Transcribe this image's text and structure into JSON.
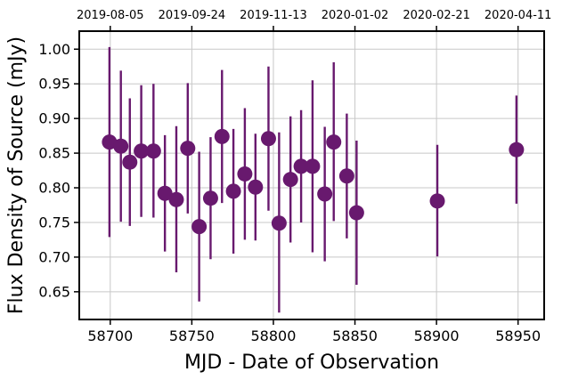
{
  "colors": {
    "marker": "#68196e",
    "grid": "#c8c8c8",
    "axis": "#000000"
  },
  "chart_data": {
    "type": "scatter",
    "title": "",
    "xlabel": "MJD - Date of Observation",
    "ylabel": "Flux Density of Source (mJy)",
    "xlim": [
      58681,
      58966
    ],
    "ylim": [
      0.61,
      1.026
    ],
    "grid": true,
    "x_ticks": [
      58700,
      58750,
      58800,
      58850,
      58900,
      58950
    ],
    "x_tick_labels": [
      "58700",
      "58750",
      "58800",
      "58850",
      "58900",
      "58950"
    ],
    "y_ticks": [
      0.65,
      0.7,
      0.75,
      0.8,
      0.85,
      0.9,
      0.95,
      1.0
    ],
    "y_tick_labels": [
      "0.65",
      "0.70",
      "0.75",
      "0.80",
      "0.85",
      "0.90",
      "0.95",
      "1.00"
    ],
    "top_axis": {
      "ticks": [
        58700,
        58750,
        58800,
        58850,
        58900,
        58950
      ],
      "labels": [
        "2019-08-05",
        "2019-09-24",
        "2019-11-13",
        "2020-01-02",
        "2020-02-21",
        "2020-04-11"
      ]
    },
    "series": [
      {
        "points": [
          {
            "x": 58699.5,
            "y": 0.866,
            "ylo": 0.729,
            "yhi": 1.003
          },
          {
            "x": 58706.5,
            "y": 0.86,
            "ylo": 0.751,
            "yhi": 0.969
          },
          {
            "x": 58712.0,
            "y": 0.837,
            "ylo": 0.745,
            "yhi": 0.929
          },
          {
            "x": 58719.0,
            "y": 0.853,
            "ylo": 0.758,
            "yhi": 0.948
          },
          {
            "x": 58726.5,
            "y": 0.853,
            "ylo": 0.757,
            "yhi": 0.95
          },
          {
            "x": 58733.5,
            "y": 0.792,
            "ylo": 0.708,
            "yhi": 0.876
          },
          {
            "x": 58740.5,
            "y": 0.783,
            "ylo": 0.678,
            "yhi": 0.889
          },
          {
            "x": 58747.5,
            "y": 0.857,
            "ylo": 0.763,
            "yhi": 0.951
          },
          {
            "x": 58754.5,
            "y": 0.744,
            "ylo": 0.636,
            "yhi": 0.852
          },
          {
            "x": 58761.5,
            "y": 0.785,
            "ylo": 0.697,
            "yhi": 0.873
          },
          {
            "x": 58768.5,
            "y": 0.874,
            "ylo": 0.778,
            "yhi": 0.97
          },
          {
            "x": 58775.5,
            "y": 0.795,
            "ylo": 0.705,
            "yhi": 0.885
          },
          {
            "x": 58782.5,
            "y": 0.82,
            "ylo": 0.725,
            "yhi": 0.915
          },
          {
            "x": 58789.0,
            "y": 0.801,
            "ylo": 0.724,
            "yhi": 0.878
          },
          {
            "x": 58797.0,
            "y": 0.871,
            "ylo": 0.767,
            "yhi": 0.975
          },
          {
            "x": 58803.5,
            "y": 0.749,
            "ylo": 0.62,
            "yhi": 0.88
          },
          {
            "x": 58810.5,
            "y": 0.812,
            "ylo": 0.721,
            "yhi": 0.903
          },
          {
            "x": 58817.0,
            "y": 0.831,
            "ylo": 0.75,
            "yhi": 0.912
          },
          {
            "x": 58824.0,
            "y": 0.831,
            "ylo": 0.707,
            "yhi": 0.955
          },
          {
            "x": 58831.5,
            "y": 0.791,
            "ylo": 0.694,
            "yhi": 0.888
          },
          {
            "x": 58837.0,
            "y": 0.866,
            "ylo": 0.752,
            "yhi": 0.981
          },
          {
            "x": 58845.0,
            "y": 0.817,
            "ylo": 0.727,
            "yhi": 0.907
          },
          {
            "x": 58851.0,
            "y": 0.764,
            "ylo": 0.66,
            "yhi": 0.868
          },
          {
            "x": 58900.5,
            "y": 0.781,
            "ylo": 0.701,
            "yhi": 0.862
          },
          {
            "x": 58949.0,
            "y": 0.855,
            "ylo": 0.777,
            "yhi": 0.933
          }
        ]
      }
    ]
  }
}
